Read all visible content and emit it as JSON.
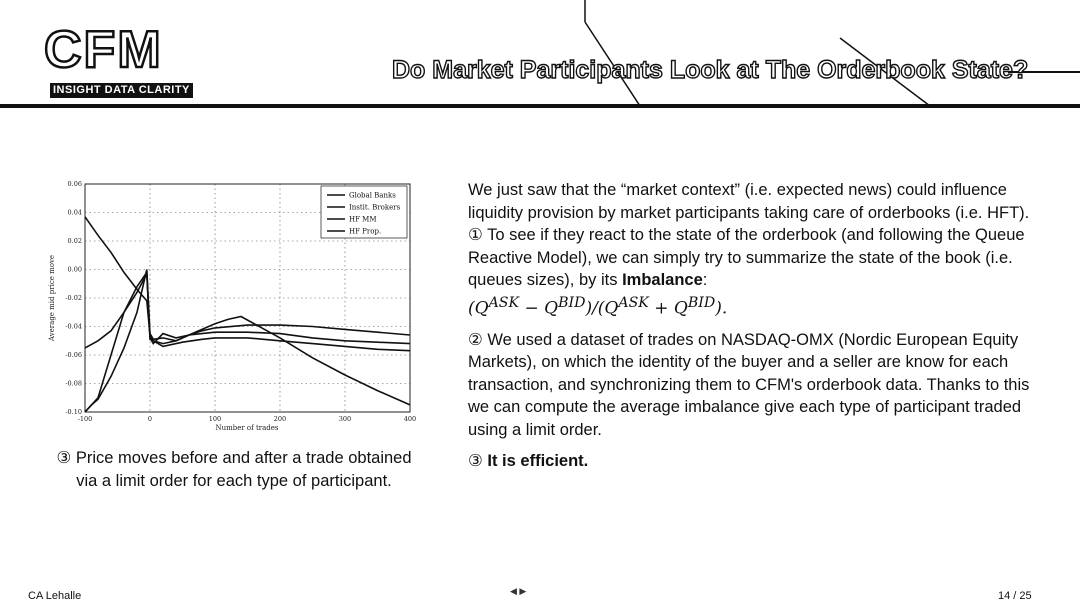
{
  "header": {
    "logo": "CFM",
    "tagline": "INSIGHT DATA CLARITY",
    "title": "Do Market Participants Look at The Orderbook State?"
  },
  "chart_data": {
    "type": "line",
    "xlabel": "Number of trades",
    "ylabel": "Average mid price move",
    "xlim": [
      -100,
      400
    ],
    "ylim": [
      -0.1,
      0.06
    ],
    "x_ticks": [
      "-100",
      "0",
      "100",
      "200",
      "300",
      "400"
    ],
    "y_ticks": [
      "0.06",
      "0.04",
      "0.02",
      "0.00",
      "-0.02",
      "-0.04",
      "-0.06",
      "-0.08",
      "-0.10"
    ],
    "grid": true,
    "legend_position": "top-right",
    "series": [
      {
        "name": "Global Banks",
        "x": [
          -100,
          -80,
          -60,
          -40,
          -20,
          -5,
          0,
          5,
          20,
          50,
          80,
          100,
          150,
          200,
          250,
          300,
          350,
          400
        ],
        "y": [
          0.037,
          0.024,
          0.012,
          -0.002,
          -0.014,
          -0.022,
          -0.046,
          -0.05,
          -0.054,
          -0.051,
          -0.049,
          -0.048,
          -0.048,
          -0.05,
          -0.052,
          -0.054,
          -0.056,
          -0.057
        ]
      },
      {
        "name": "Instit. Brokers",
        "x": [
          -100,
          -80,
          -60,
          -40,
          -20,
          -5,
          0,
          5,
          20,
          40,
          60,
          80,
          100,
          150,
          200,
          250,
          300,
          350,
          400
        ],
        "y": [
          -0.055,
          -0.05,
          -0.043,
          -0.03,
          -0.016,
          -0.003,
          -0.049,
          -0.05,
          -0.052,
          -0.05,
          -0.046,
          -0.043,
          -0.041,
          -0.039,
          -0.039,
          -0.04,
          -0.042,
          -0.044,
          -0.046
        ]
      },
      {
        "name": "HF MM",
        "x": [
          -100,
          -90,
          -80,
          -60,
          -40,
          -20,
          -5,
          0,
          5,
          20,
          40,
          60,
          80,
          100,
          150,
          200,
          250,
          300,
          350,
          400
        ],
        "y": [
          -0.1,
          -0.095,
          -0.091,
          -0.075,
          -0.055,
          -0.03,
          0.0,
          -0.048,
          -0.052,
          -0.045,
          -0.048,
          -0.046,
          -0.045,
          -0.044,
          -0.044,
          -0.045,
          -0.048,
          -0.05,
          -0.051,
          -0.052
        ]
      },
      {
        "name": "HF Prop.",
        "x": [
          -100,
          -80,
          -60,
          -40,
          -20,
          -5,
          0,
          5,
          20,
          40,
          60,
          80,
          100,
          120,
          140,
          200,
          250,
          300,
          350,
          400
        ],
        "y": [
          -0.1,
          -0.09,
          -0.06,
          -0.03,
          -0.012,
          -0.002,
          -0.045,
          -0.049,
          -0.048,
          -0.05,
          -0.046,
          -0.042,
          -0.038,
          -0.035,
          -0.033,
          -0.048,
          -0.062,
          -0.074,
          -0.085,
          -0.095
        ]
      }
    ]
  },
  "caption": "③ Price moves before and after a trade obtained via a limit order for each type of participant.",
  "body": {
    "p1": "We just saw that the “market context” (i.e. expected news) could influence liquidity provision by market participants taking care of orderbooks (i.e. HFT).",
    "p2_start": "① To see if they react to the state of the orderbook (and following the Queue Reactive Model), we can simply try to summarize the state of the book (i.e. queues sizes), by its ",
    "p2_bold": "Imbalance",
    "p2_end": ":",
    "formula": "(QASK − QBID)/(QASK + QBID).",
    "p3": "② We used a dataset of trades on NASDAQ-OMX (Nordic European Equity Markets), on which the identity of the buyer and a seller are know for each transaction, and synchronizing them to CFM's orderbook data. Thanks to this we can compute the average imbalance give each type of participant traded using a limit order.",
    "p4_prefix": "③ ",
    "p4_bold": "It is efficient."
  },
  "footer": {
    "author": "CA Lehalle",
    "page": "14 / 25",
    "nav": "◀ ▶"
  }
}
